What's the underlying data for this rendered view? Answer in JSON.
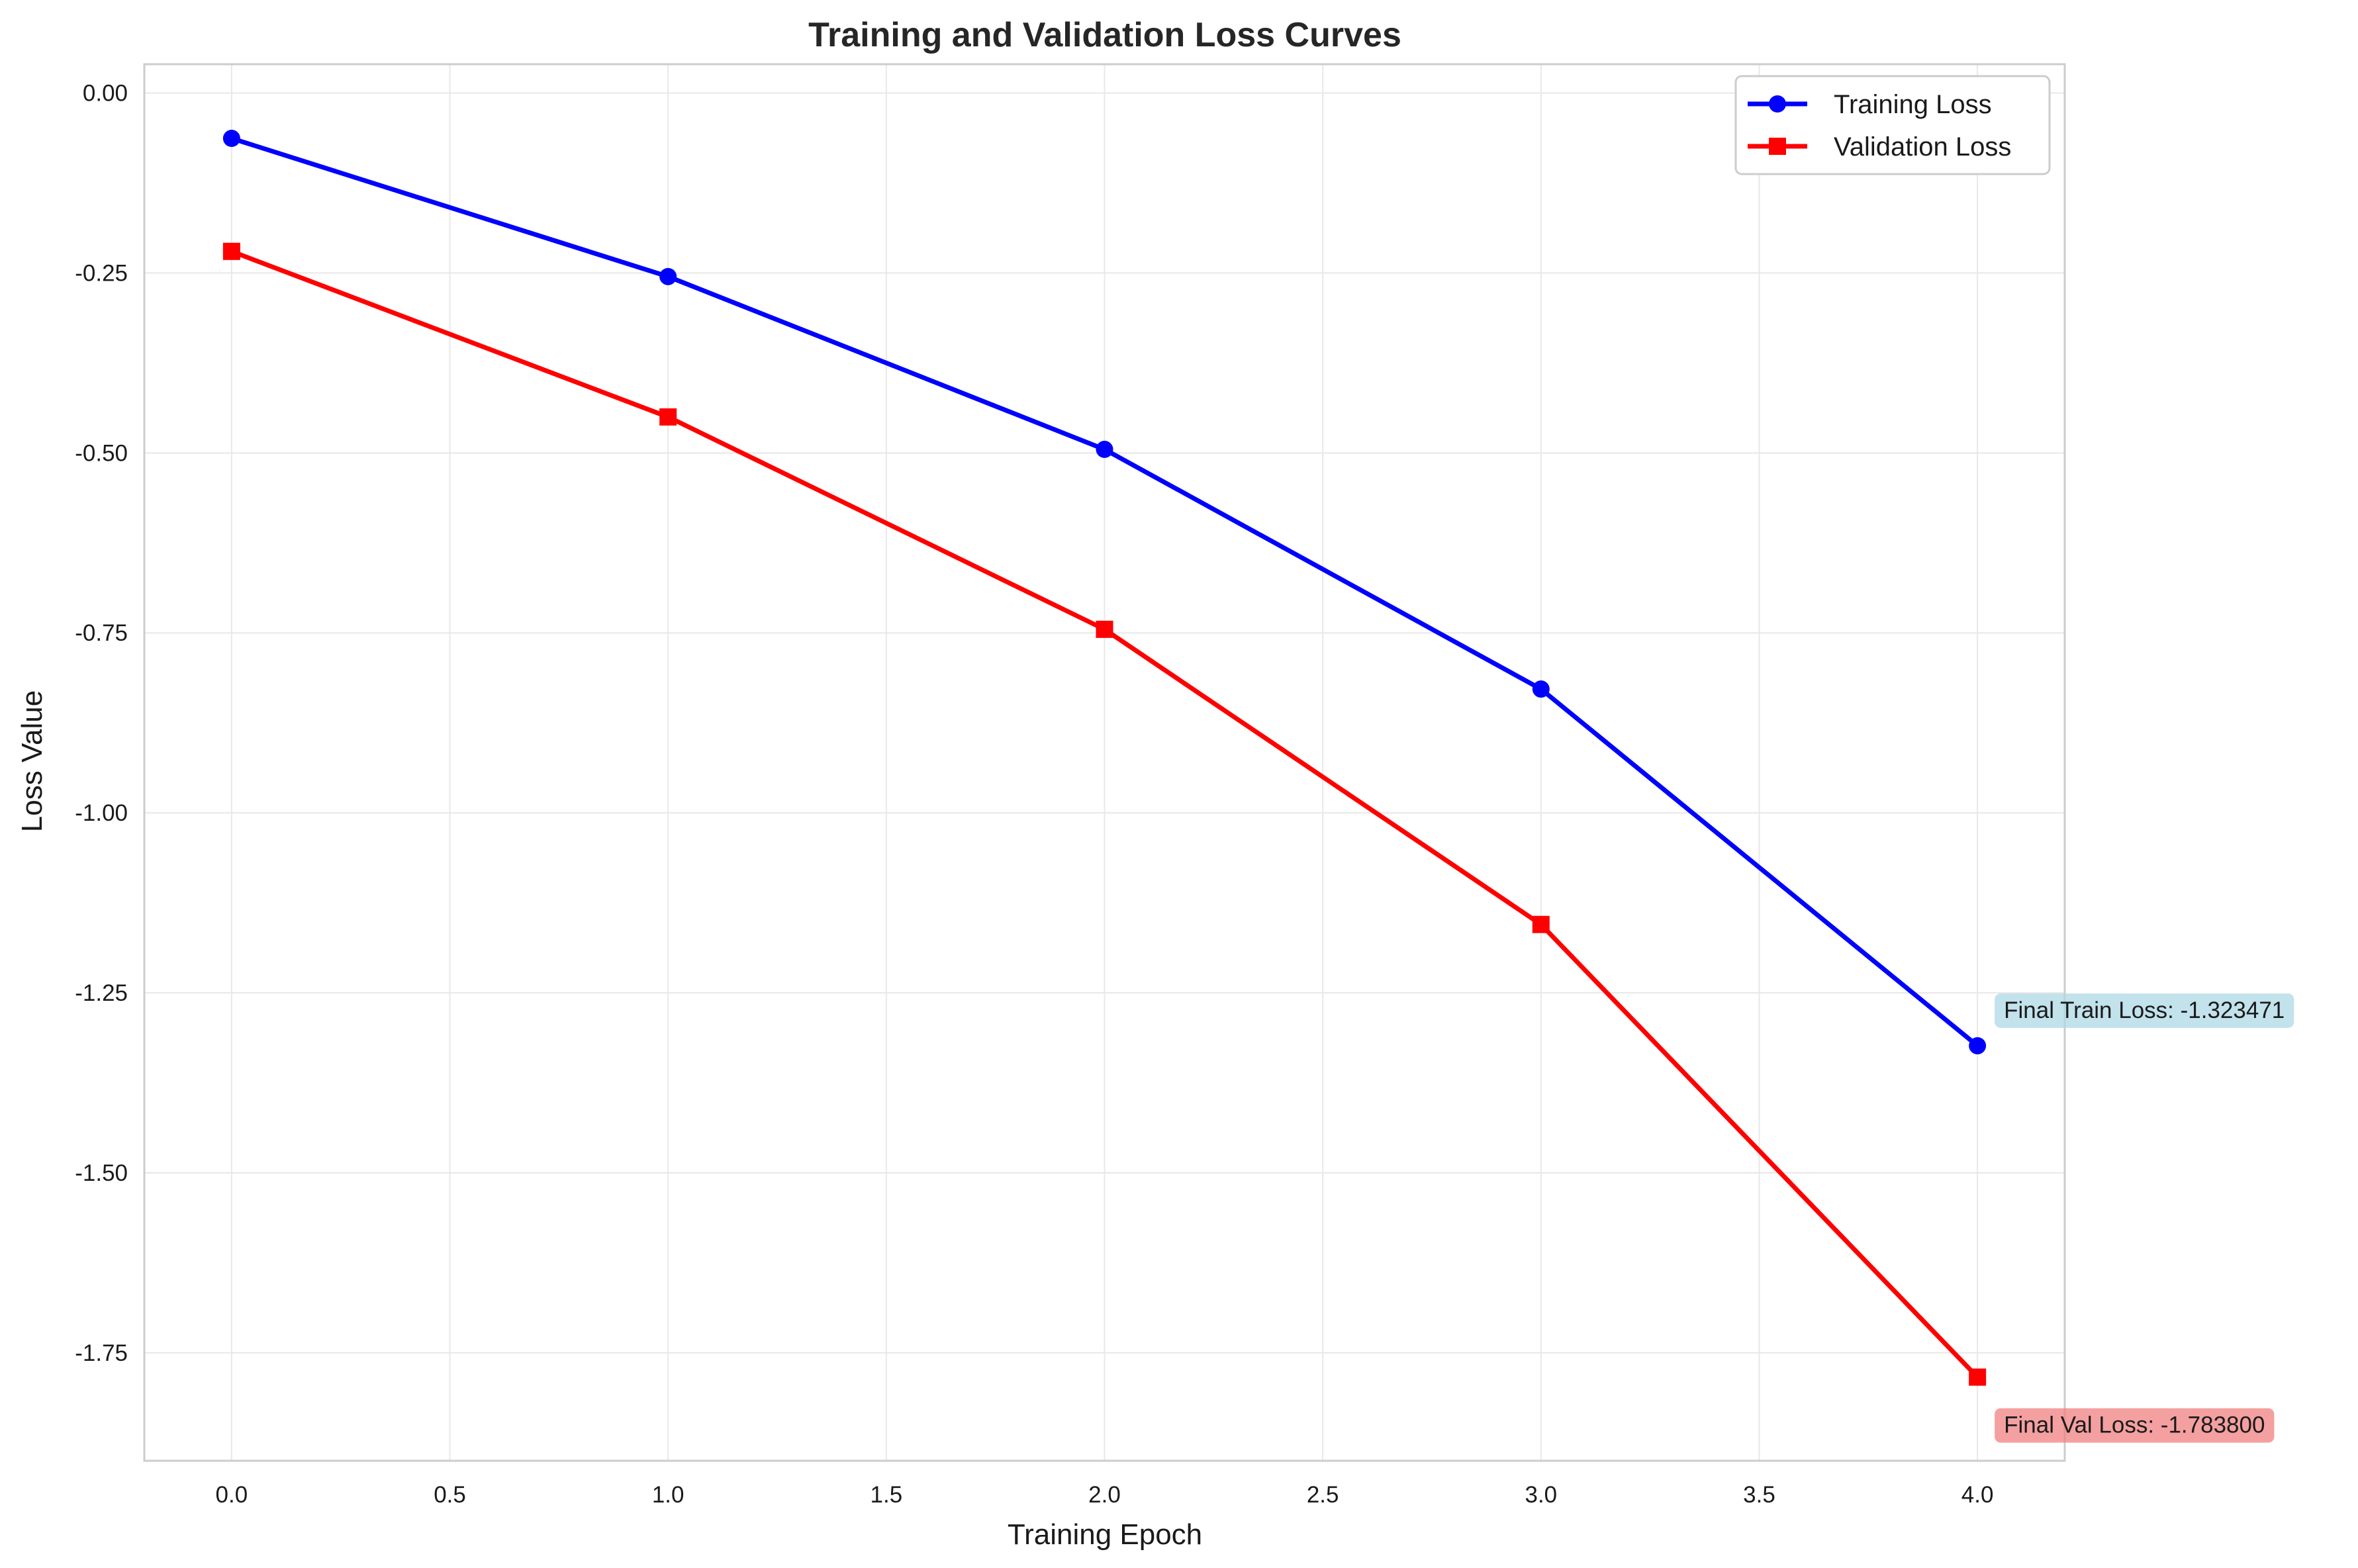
{
  "chart_data": {
    "type": "line",
    "title": "Training and Validation Loss Curves",
    "xlabel": "Training Epoch",
    "ylabel": "Loss Value",
    "x": [
      0,
      1,
      2,
      3,
      4
    ],
    "xlim": [
      -0.2,
      4.2
    ],
    "ylim": [
      -1.9,
      0.04
    ],
    "xticks": [
      0.0,
      0.5,
      1.0,
      1.5,
      2.0,
      2.5,
      3.0,
      3.5,
      4.0
    ],
    "xtick_labels": [
      "0.0",
      "0.5",
      "1.0",
      "1.5",
      "2.0",
      "2.5",
      "3.0",
      "3.5",
      "4.0"
    ],
    "yticks": [
      0.0,
      -0.25,
      -0.5,
      -0.75,
      -1.0,
      -1.25,
      -1.5,
      -1.75
    ],
    "ytick_labels": [
      "0.00",
      "-0.25",
      "-0.50",
      "-0.75",
      "-1.00",
      "-1.25",
      "-1.50",
      "-1.75"
    ],
    "grid": true,
    "legend_position": "top-right",
    "series": [
      {
        "name": "Training Loss",
        "values": [
          -0.063,
          -0.255,
          -0.495,
          -0.828,
          -1.323471
        ],
        "color": "#0000ff",
        "marker": "circle"
      },
      {
        "name": "Validation Loss",
        "values": [
          -0.22,
          -0.45,
          -0.745,
          -1.155,
          -1.7838
        ],
        "color": "#ff0000",
        "marker": "square"
      }
    ],
    "annotations": [
      {
        "text": "Final Train Loss: -1.323471",
        "x": 4,
        "y": -1.323471,
        "background": "#add8e6"
      },
      {
        "text": "Final Val Loss: -1.783800",
        "x": 4,
        "y": -1.7838,
        "background": "#f08080"
      }
    ]
  }
}
